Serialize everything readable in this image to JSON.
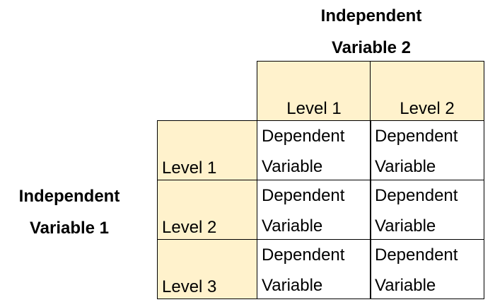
{
  "factor2": {
    "line1": "Independent",
    "line2": "Variable 2",
    "levels": [
      "Level 1",
      "Level 2"
    ]
  },
  "factor1": {
    "line1": "Independent",
    "line2": "Variable 1",
    "levels": [
      "Level 1",
      "Level 2",
      "Level 3"
    ]
  },
  "cell": {
    "line1": "Dependent",
    "line2": "Variable"
  },
  "colors": {
    "header_fill": "#fff2cc",
    "border": "#000000"
  }
}
